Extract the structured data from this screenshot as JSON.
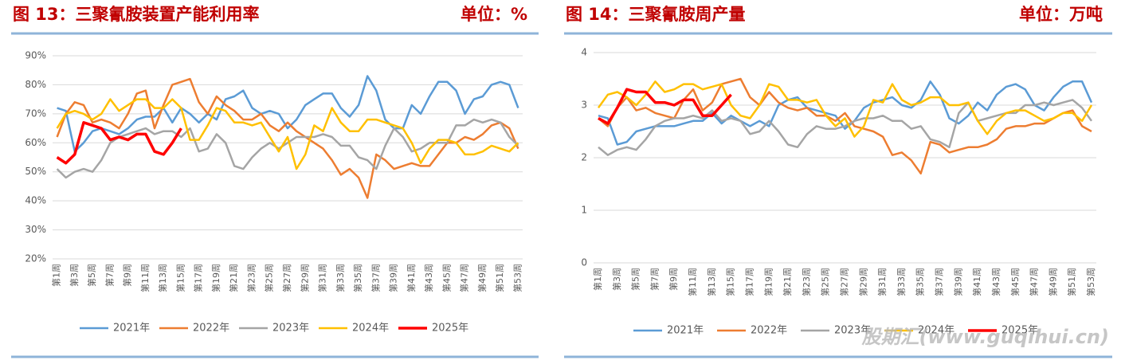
{
  "chart_data": [
    {
      "type": "line",
      "title": "图 13：三聚氰胺装置产能利用率",
      "unit": "单位：%",
      "categories": [
        "第1周",
        null,
        "第3周",
        null,
        "第5周",
        null,
        "第7周",
        null,
        "第9周",
        null,
        "第11周",
        null,
        "第13周",
        null,
        "第15周",
        null,
        "第17周",
        null,
        "第19周",
        null,
        "第21周",
        null,
        "第23周",
        null,
        "第25周",
        null,
        "第27周",
        null,
        "第29周",
        null,
        "第31周",
        null,
        "第33周",
        null,
        "第35周",
        null,
        "第37周",
        null,
        "第39周",
        null,
        "第41周",
        null,
        "第43周",
        null,
        "第45周",
        null,
        "第47周",
        null,
        "第49周",
        null,
        "第51周",
        null,
        "第53周"
      ],
      "ylim": [
        20,
        90
      ],
      "yticks": [
        {
          "value": 20,
          "label": "20%"
        },
        {
          "value": 30,
          "label": "30%"
        },
        {
          "value": 40,
          "label": "40%"
        },
        {
          "value": 50,
          "label": "50%"
        },
        {
          "value": 60,
          "label": "60%"
        },
        {
          "value": 70,
          "label": "70%"
        },
        {
          "value": 80,
          "label": "80%"
        },
        {
          "value": 90,
          "label": "90%"
        }
      ],
      "grid": true,
      "legend": "bottom",
      "series": [
        {
          "name": "2021年",
          "color": "#5b9bd5",
          "values": [
            72,
            71,
            57,
            60,
            64,
            65,
            64,
            63,
            65,
            68,
            69,
            69,
            72,
            67,
            72,
            70,
            67,
            70,
            68,
            75,
            76,
            78,
            72,
            70,
            71,
            70,
            65,
            68,
            73,
            75,
            77,
            77,
            72,
            69,
            73,
            83,
            78,
            68,
            65,
            65,
            73,
            70,
            76,
            81,
            81,
            78,
            70,
            75,
            76,
            80,
            81,
            80,
            72
          ]
        },
        {
          "name": "2022年",
          "color": "#ed7d31",
          "values": [
            62,
            70,
            74,
            73,
            67,
            68,
            67,
            65,
            70,
            77,
            78,
            65,
            73,
            80,
            81,
            82,
            74,
            70,
            76,
            73,
            71,
            68,
            68,
            70,
            66,
            64,
            67,
            64,
            62,
            60,
            58,
            54,
            49,
            51,
            48,
            41,
            56,
            54,
            51,
            52,
            53,
            52,
            52,
            56,
            60,
            60,
            62,
            61,
            63,
            66,
            67,
            65,
            58
          ]
        },
        {
          "name": "2023年",
          "color": "#a5a5a5",
          "values": [
            51,
            48,
            50,
            51,
            50,
            54,
            60,
            62,
            63,
            64,
            65,
            63,
            64,
            64,
            62,
            65,
            57,
            58,
            63,
            60,
            52,
            51,
            55,
            58,
            60,
            58,
            60,
            62,
            62,
            62,
            63,
            62,
            59,
            59,
            55,
            54,
            51,
            59,
            65,
            62,
            57,
            58,
            60,
            60,
            60,
            66,
            66,
            68,
            67,
            68,
            67,
            62,
            59
          ]
        },
        {
          "name": "2024年",
          "color": "#ffc000",
          "values": [
            65,
            70,
            71,
            70,
            68,
            70,
            75,
            71,
            73,
            75,
            75,
            72,
            72,
            75,
            72,
            61,
            61,
            66,
            72,
            71,
            67,
            67,
            66,
            67,
            62,
            57,
            62,
            51,
            56,
            66,
            64,
            72,
            67,
            64,
            64,
            68,
            68,
            67,
            66,
            65,
            60,
            53,
            58,
            61,
            61,
            60,
            56,
            56,
            57,
            59,
            58,
            57,
            60
          ]
        },
        {
          "name": "2025年",
          "color": "#ff0000",
          "values": [
            55,
            53,
            56,
            67,
            66,
            65,
            61,
            62,
            61,
            63,
            63,
            57,
            56,
            60,
            65,
            null,
            null,
            null,
            null,
            null,
            null,
            null,
            null,
            null,
            null,
            null,
            null,
            null,
            null,
            null,
            null,
            null,
            null,
            null,
            null,
            null,
            null,
            null,
            null,
            null,
            null,
            null,
            null,
            null,
            null,
            null,
            null,
            null,
            null,
            null,
            null,
            null,
            null
          ]
        }
      ]
    },
    {
      "type": "line",
      "title": "图 14：三聚氰胺周产量",
      "unit": "单位：万吨",
      "categories": [
        "第1周",
        null,
        "第3周",
        null,
        "第5周",
        null,
        "第7周",
        null,
        "第9周",
        null,
        "第11周",
        null,
        "第13周",
        null,
        "第15周",
        null,
        "第17周",
        null,
        "第19周",
        null,
        "第21周",
        null,
        "第23周",
        null,
        "第25周",
        null,
        "第27周",
        null,
        "第29周",
        null,
        "第31周",
        null,
        "第33周",
        null,
        "第35周",
        null,
        "第37周",
        null,
        "第39周",
        null,
        "第41周",
        null,
        "第43周",
        null,
        "第45周",
        null,
        "第47周",
        null,
        "第49周",
        null,
        "第51周",
        null,
        "第53周"
      ],
      "ylim": [
        0,
        4
      ],
      "yticks": [
        0,
        1,
        2,
        3,
        4
      ],
      "grid": true,
      "legend": "bottom",
      "series": [
        {
          "name": "2021年",
          "color": "#5b9bd5",
          "values": [
            2.8,
            2.75,
            2.25,
            2.3,
            2.5,
            2.55,
            2.6,
            2.6,
            2.6,
            2.65,
            2.7,
            2.7,
            2.85,
            2.65,
            2.8,
            2.7,
            2.6,
            2.7,
            2.6,
            3.0,
            3.1,
            3.15,
            2.95,
            2.9,
            2.85,
            2.8,
            2.55,
            2.7,
            2.95,
            3.05,
            3.1,
            3.15,
            3.0,
            2.95,
            3.1,
            3.45,
            3.2,
            2.75,
            2.65,
            2.8,
            3.05,
            2.9,
            3.2,
            3.35,
            3.4,
            3.3,
            3.0,
            2.9,
            3.15,
            3.35,
            3.45,
            3.45,
            3.05
          ]
        },
        {
          "name": "2022年",
          "color": "#ed7d31",
          "values": [
            2.75,
            2.6,
            2.95,
            3.15,
            2.9,
            2.95,
            2.85,
            2.8,
            2.75,
            3.1,
            3.3,
            2.9,
            3.05,
            3.4,
            3.45,
            3.5,
            3.15,
            3.0,
            3.25,
            3.05,
            2.95,
            2.9,
            2.95,
            2.8,
            2.8,
            2.7,
            2.85,
            2.6,
            2.55,
            2.5,
            2.4,
            2.05,
            2.1,
            1.95,
            1.7,
            2.3,
            2.25,
            2.1,
            2.15,
            2.2,
            2.2,
            2.25,
            2.35,
            2.55,
            2.6,
            2.6,
            2.65,
            2.65,
            2.75,
            2.85,
            2.9,
            2.6,
            2.5
          ]
        },
        {
          "name": "2023年",
          "color": "#a5a5a5",
          "values": [
            2.2,
            2.05,
            2.15,
            2.2,
            2.15,
            2.35,
            2.6,
            2.7,
            2.75,
            2.75,
            2.8,
            2.75,
            2.9,
            2.7,
            2.75,
            2.7,
            2.45,
            2.5,
            2.7,
            2.5,
            2.25,
            2.2,
            2.45,
            2.6,
            2.55,
            2.55,
            2.6,
            2.7,
            2.75,
            2.75,
            2.8,
            2.7,
            2.7,
            2.55,
            2.6,
            2.35,
            2.3,
            2.2,
            2.85,
            3.05,
            2.7,
            2.75,
            2.8,
            2.85,
            2.85,
            3.0,
            3.0,
            3.05,
            3.0,
            3.05,
            3.1,
            2.95,
            2.7
          ]
        },
        {
          "name": "2024年",
          "color": "#ffc000",
          "values": [
            2.95,
            3.2,
            3.25,
            3.15,
            3.0,
            3.2,
            3.45,
            3.25,
            3.3,
            3.4,
            3.4,
            3.3,
            3.35,
            3.4,
            3.0,
            2.8,
            2.75,
            3.0,
            3.4,
            3.35,
            3.1,
            3.1,
            3.05,
            3.1,
            2.8,
            2.6,
            2.75,
            2.4,
            2.6,
            3.1,
            3.05,
            3.4,
            3.1,
            3.0,
            3.05,
            3.15,
            3.15,
            3.0,
            3.0,
            3.05,
            2.7,
            2.45,
            2.7,
            2.85,
            2.9,
            2.9,
            2.8,
            2.7,
            2.75,
            2.85,
            2.85,
            2.7,
            3.0
          ]
        },
        {
          "name": "2025年",
          "color": "#ff0000",
          "values": [
            2.75,
            2.65,
            2.95,
            3.3,
            3.25,
            3.25,
            3.05,
            3.05,
            3.0,
            3.1,
            3.1,
            2.8,
            2.8,
            3.0,
            3.2,
            null,
            null,
            null,
            null,
            null,
            null,
            null,
            null,
            null,
            null,
            null,
            null,
            null,
            null,
            null,
            null,
            null,
            null,
            null,
            null,
            null,
            null,
            null,
            null,
            null,
            null,
            null,
            null,
            null,
            null,
            null,
            null,
            null,
            null,
            null,
            null,
            null,
            null
          ]
        }
      ]
    }
  ],
  "watermark": "股期汇(www.guqihui.cn)"
}
